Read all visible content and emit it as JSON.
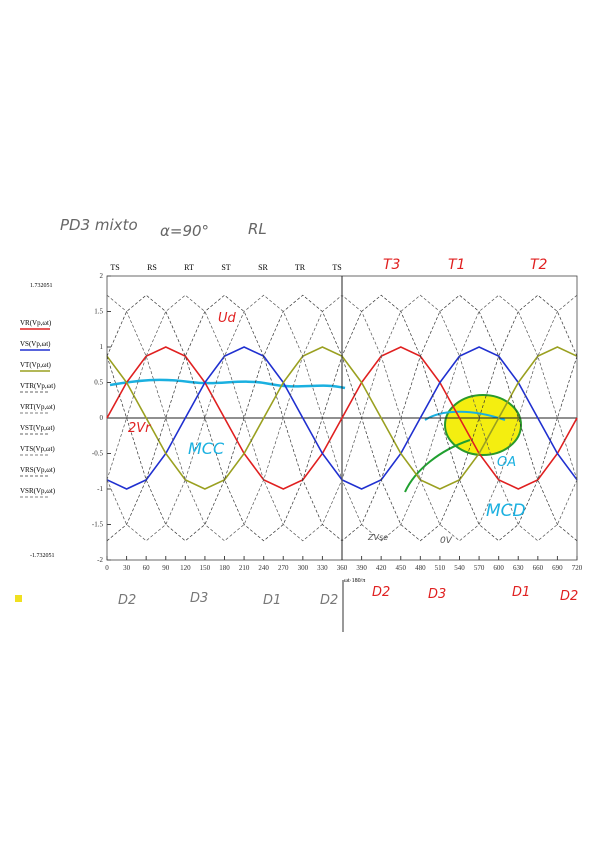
{
  "chart_data": {
    "type": "line",
    "phase_labels": [
      "TS",
      "RS",
      "RT",
      "ST",
      "SR",
      "TR",
      "TS"
    ],
    "y_range_labels": [
      "1.732051",
      "-1.732051"
    ],
    "x_label": "ωt·180/π",
    "x": [
      0,
      30,
      60,
      90,
      120,
      150,
      180,
      210,
      240,
      270,
      300,
      330,
      360,
      390,
      420,
      450,
      480,
      510,
      540,
      570,
      600,
      630,
      660,
      690,
      720
    ],
    "xlim": [
      0,
      720
    ],
    "xticks": [
      0,
      30,
      60,
      90,
      120,
      150,
      180,
      210,
      240,
      270,
      300,
      330,
      360,
      390,
      420,
      450,
      480,
      510,
      540,
      570,
      600,
      630,
      660,
      690,
      720
    ],
    "ylim": [
      -2,
      2
    ],
    "yticks": [
      -2,
      -1.5,
      -1,
      -0.5,
      0,
      0.5,
      1,
      1.5,
      2
    ],
    "series": [
      {
        "name": "VR(Vp,ωt)",
        "color": "#e02020",
        "values": [
          0,
          0.5,
          0.87,
          1,
          0.87,
          0.5,
          0,
          -0.5,
          -0.87,
          -1,
          -0.87,
          -0.5,
          0,
          0.5,
          0.87,
          1,
          0.87,
          0.5,
          0,
          -0.5,
          -0.87,
          -1,
          -0.87,
          -0.5,
          0
        ]
      },
      {
        "name": "VS(Vp,ωt)",
        "color": "#2030d0",
        "values": [
          -0.87,
          -1,
          -0.87,
          -0.5,
          0,
          0.5,
          0.87,
          1,
          0.87,
          0.5,
          0,
          -0.5,
          -0.87,
          -1,
          -0.87,
          -0.5,
          0,
          0.5,
          0.87,
          1,
          0.87,
          0.5,
          0,
          -0.5,
          -0.87
        ]
      },
      {
        "name": "VT(Vp,ωt)",
        "color": "#9aa020",
        "values": [
          0.87,
          0.5,
          0,
          -0.5,
          -0.87,
          -1,
          -0.87,
          -0.5,
          0,
          0.5,
          0.87,
          1,
          0.87,
          0.5,
          0,
          -0.5,
          -0.87,
          -1,
          -0.87,
          -0.5,
          0,
          0.5,
          0.87,
          1,
          0.87
        ]
      },
      {
        "name": "VTR(Vp,ωt)",
        "color": "#333333",
        "values": [
          0.87,
          0,
          -0.87,
          -1.5,
          -1.73,
          -1.5,
          -0.87,
          0,
          0.87,
          1.5,
          1.73,
          1.5,
          0.87,
          0,
          -0.87,
          -1.5,
          -1.73,
          -1.5,
          -0.87,
          0,
          0.87,
          1.5,
          1.73,
          1.5,
          0.87
        ]
      },
      {
        "name": "VRT(Vp,ωt)",
        "color": "#555555",
        "values": [
          -0.87,
          0,
          0.87,
          1.5,
          1.73,
          1.5,
          0.87,
          0,
          -0.87,
          -1.5,
          -1.73,
          -1.5,
          -0.87,
          0,
          0.87,
          1.5,
          1.73,
          1.5,
          0.87,
          0,
          -0.87,
          -1.5,
          -1.73,
          -1.5,
          -0.87
        ]
      },
      {
        "name": "VST(Vp,ωt)",
        "color": "#333333",
        "values": [
          -1.73,
          -1.5,
          -0.87,
          0,
          0.87,
          1.5,
          1.73,
          1.5,
          0.87,
          0,
          -0.87,
          -1.5,
          -1.73,
          -1.5,
          -0.87,
          0,
          0.87,
          1.5,
          1.73,
          1.5,
          0.87,
          0,
          -0.87,
          -1.5,
          -1.73
        ]
      },
      {
        "name": "VTS(Vp,ωt)",
        "color": "#555555",
        "values": [
          1.73,
          1.5,
          0.87,
          0,
          -0.87,
          -1.5,
          -1.73,
          -1.5,
          -0.87,
          0,
          0.87,
          1.5,
          1.73,
          1.5,
          0.87,
          0,
          -0.87,
          -1.5,
          -1.73,
          -1.5,
          -0.87,
          0,
          0.87,
          1.5,
          1.73
        ]
      },
      {
        "name": "VRS(Vp,ωt)",
        "color": "#333333",
        "values": [
          0.87,
          1.5,
          1.73,
          1.5,
          0.87,
          0,
          -0.87,
          -1.5,
          -1.73,
          -1.5,
          -0.87,
          0,
          0.87,
          1.5,
          1.73,
          1.5,
          0.87,
          0,
          -0.87,
          -1.5,
          -1.73,
          -1.5,
          -0.87,
          0,
          0.87
        ]
      },
      {
        "name": "VSR(Vp,ωt)",
        "color": "#555555",
        "values": [
          -0.87,
          -1.5,
          -1.73,
          -1.5,
          -0.87,
          0,
          0.87,
          1.5,
          1.73,
          1.5,
          0.87,
          0,
          -0.87,
          -1.5,
          -1.73,
          -1.5,
          -0.87,
          0,
          0.87,
          1.5,
          1.73,
          1.5,
          0.87,
          0,
          -0.87
        ]
      }
    ],
    "annotations": [
      "PD3 mixto",
      "α=90°",
      "RL",
      "T3",
      "T1",
      "T2",
      "Ud",
      "2Vr",
      "MCC",
      "MCD",
      "OA",
      "ZVse",
      "0V",
      "D2",
      "D3",
      "D1",
      "D2",
      "D2",
      "D3",
      "D1",
      "D2"
    ]
  }
}
